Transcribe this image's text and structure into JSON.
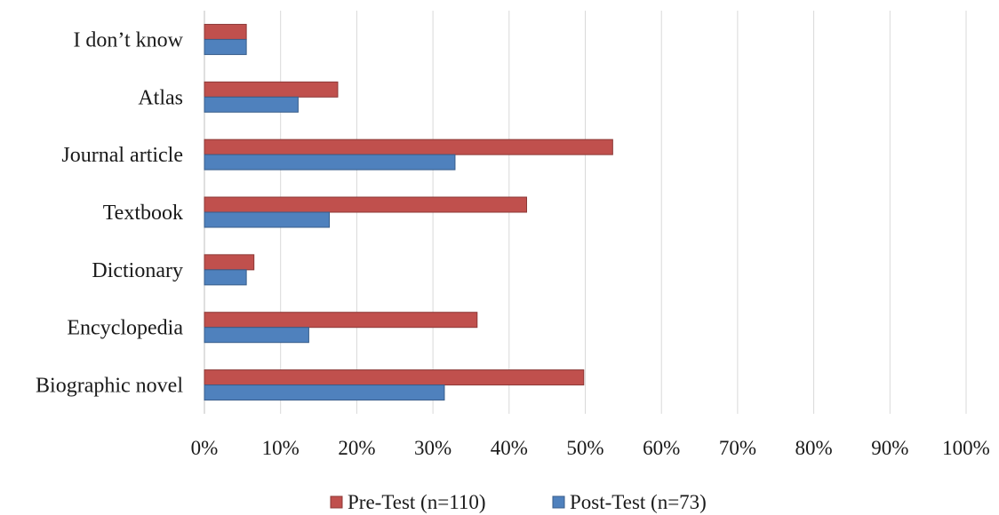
{
  "chart_data": {
    "type": "bar",
    "orientation": "horizontal",
    "categories": [
      "I don’t know",
      "Atlas",
      "Journal article",
      "Textbook",
      "Dictionary",
      "Encyclopedia",
      "Biographic novel"
    ],
    "series": [
      {
        "name": "Pre-Test (n=110)",
        "color": "#c0504d",
        "values": [
          5.5,
          17.5,
          53.6,
          42.3,
          6.5,
          35.8,
          49.8
        ]
      },
      {
        "name": "Post-Test (n=73)",
        "color": "#4f81bd",
        "values": [
          5.5,
          12.3,
          32.9,
          16.4,
          5.5,
          13.7,
          31.5
        ]
      }
    ],
    "xlim": [
      0,
      100
    ],
    "xticks": [
      "0%",
      "10%",
      "20%",
      "30%",
      "40%",
      "50%",
      "60%",
      "70%",
      "80%",
      "90%",
      "100%"
    ],
    "grid": true,
    "legend_position": "bottom"
  }
}
